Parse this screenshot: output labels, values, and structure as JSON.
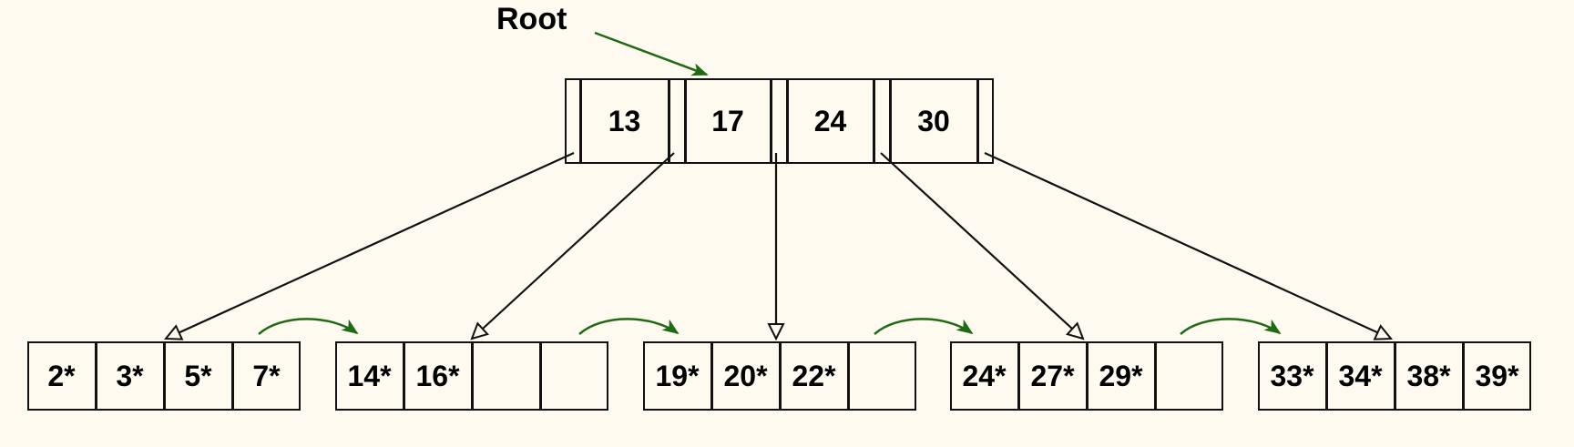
{
  "root_label": "Root",
  "root_keys": [
    "13",
    "17",
    "24",
    "30"
  ],
  "leaves": [
    {
      "entries": [
        "2*",
        "3*",
        "5*",
        "7*"
      ]
    },
    {
      "entries": [
        "14*",
        "16*",
        "",
        ""
      ]
    },
    {
      "entries": [
        "19*",
        "20*",
        "22*",
        ""
      ]
    },
    {
      "entries": [
        "24*",
        "27*",
        "29*",
        ""
      ]
    },
    {
      "entries": [
        "33*",
        "34*",
        "38*",
        "39*"
      ]
    }
  ],
  "colors": {
    "background": "#fefaef",
    "pointer": "#111111",
    "sibling_link": "#1f6b14",
    "root_arrow": "#1f6b14"
  }
}
